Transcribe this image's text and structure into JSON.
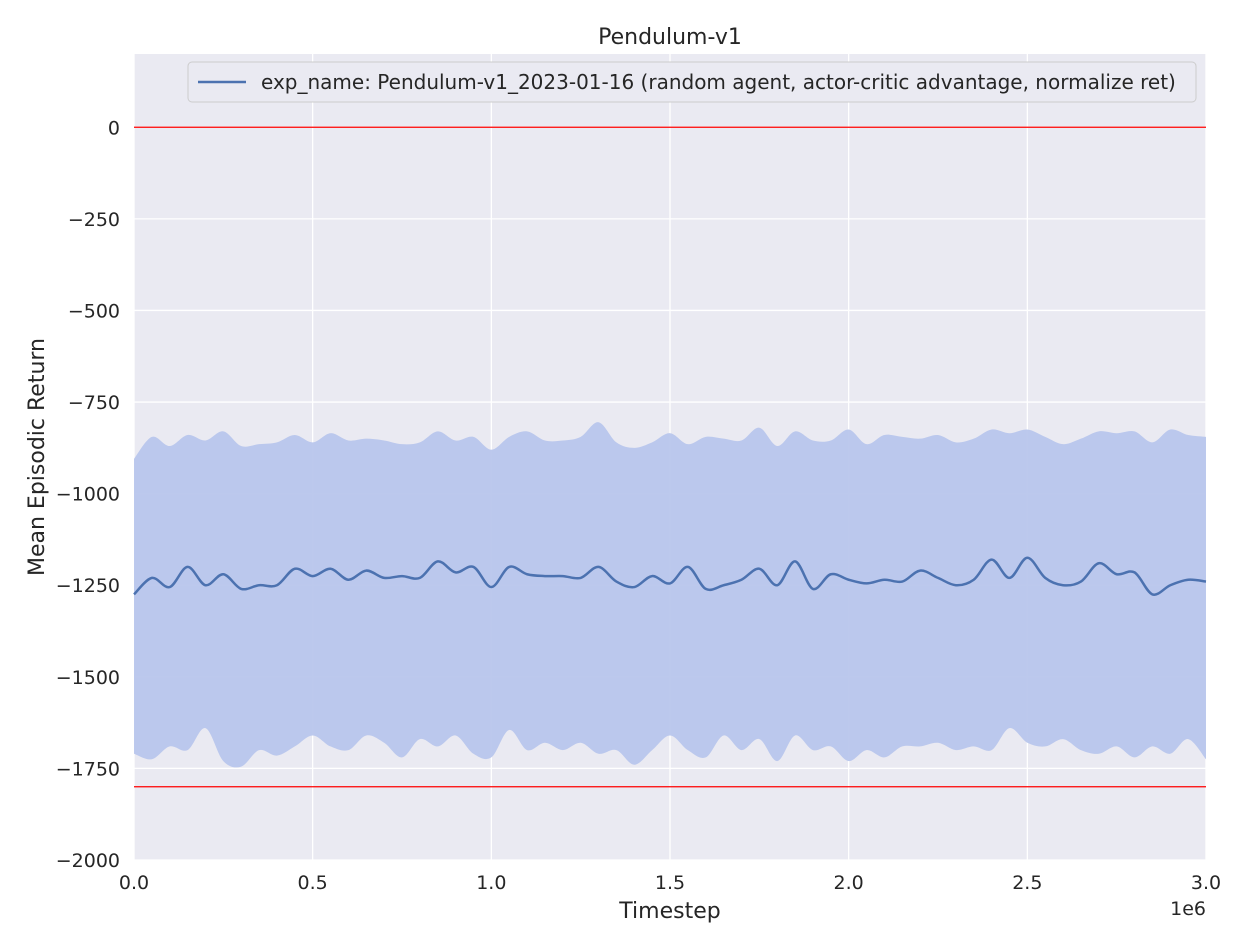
{
  "chart_data": {
    "type": "line",
    "title": "Pendulum-v1",
    "xlabel": "Timestep",
    "ylabel": "Mean Episodic Return",
    "x_scale_label": "1e6",
    "xlim": [
      0,
      3000000
    ],
    "ylim": [
      -2000,
      200
    ],
    "x_ticks": [
      0,
      500000,
      1000000,
      1500000,
      2000000,
      2500000,
      3000000
    ],
    "x_tick_labels": [
      "0.0",
      "0.5",
      "1.0",
      "1.5",
      "2.0",
      "2.5",
      "3.0"
    ],
    "y_ticks": [
      0,
      -250,
      -500,
      -750,
      -1000,
      -1250,
      -1500,
      -1750,
      -2000
    ],
    "y_tick_labels": [
      "0",
      "−250",
      "−500",
      "−750",
      "−1000",
      "−1250",
      "−1500",
      "−1750",
      "−2000"
    ],
    "grid": true,
    "legend_position": "top-right",
    "background": "#eaeaf2",
    "reference_lines": [
      {
        "y": 0,
        "color": "#ff0000"
      },
      {
        "y": -1800,
        "color": "#ff0000"
      }
    ],
    "series": [
      {
        "name": "exp_name: Pendulum-v1_2023-01-16 (random agent, actor-critic advantage, normalize ret)",
        "color": "#4c72b0",
        "band_color": "#b8c6ec",
        "x": [
          0,
          50000,
          100000,
          150000,
          200000,
          250000,
          300000,
          350000,
          400000,
          450000,
          500000,
          550000,
          600000,
          650000,
          700000,
          750000,
          800000,
          850000,
          900000,
          950000,
          1000000,
          1050000,
          1100000,
          1150000,
          1200000,
          1250000,
          1300000,
          1350000,
          1400000,
          1450000,
          1500000,
          1550000,
          1600000,
          1650000,
          1700000,
          1750000,
          1800000,
          1850000,
          1900000,
          1950000,
          2000000,
          2050000,
          2100000,
          2150000,
          2200000,
          2250000,
          2300000,
          2350000,
          2400000,
          2450000,
          2500000,
          2550000,
          2600000,
          2650000,
          2700000,
          2750000,
          2800000,
          2850000,
          2900000,
          2950000,
          3000000
        ],
        "mean": [
          -1275,
          -1230,
          -1255,
          -1200,
          -1250,
          -1220,
          -1260,
          -1250,
          -1250,
          -1205,
          -1225,
          -1205,
          -1235,
          -1210,
          -1230,
          -1225,
          -1230,
          -1185,
          -1215,
          -1200,
          -1255,
          -1200,
          -1220,
          -1225,
          -1225,
          -1230,
          -1200,
          -1240,
          -1255,
          -1225,
          -1245,
          -1200,
          -1260,
          -1250,
          -1235,
          -1205,
          -1250,
          -1185,
          -1260,
          -1220,
          -1235,
          -1245,
          -1235,
          -1240,
          -1210,
          -1230,
          -1250,
          -1235,
          -1180,
          -1230,
          -1175,
          -1230,
          -1250,
          -1240,
          -1190,
          -1220,
          -1215,
          -1275,
          -1250,
          -1235,
          -1240
        ],
        "upper": [
          -905,
          -845,
          -870,
          -840,
          -855,
          -830,
          -870,
          -865,
          -860,
          -840,
          -860,
          -835,
          -855,
          -850,
          -855,
          -865,
          -860,
          -830,
          -855,
          -845,
          -880,
          -845,
          -830,
          -855,
          -855,
          -845,
          -805,
          -860,
          -875,
          -860,
          -835,
          -865,
          -845,
          -850,
          -855,
          -820,
          -870,
          -830,
          -855,
          -855,
          -825,
          -865,
          -840,
          -845,
          -850,
          -840,
          -860,
          -850,
          -825,
          -835,
          -825,
          -845,
          -865,
          -850,
          -830,
          -835,
          -830,
          -860,
          -825,
          -840,
          -845
        ],
        "lower": [
          -1710,
          -1725,
          -1690,
          -1700,
          -1640,
          -1730,
          -1745,
          -1700,
          -1715,
          -1690,
          -1660,
          -1690,
          -1700,
          -1660,
          -1680,
          -1720,
          -1670,
          -1690,
          -1660,
          -1710,
          -1720,
          -1645,
          -1700,
          -1680,
          -1700,
          -1680,
          -1710,
          -1700,
          -1740,
          -1700,
          -1660,
          -1700,
          -1720,
          -1660,
          -1700,
          -1670,
          -1730,
          -1660,
          -1700,
          -1690,
          -1730,
          -1700,
          -1720,
          -1690,
          -1690,
          -1680,
          -1700,
          -1690,
          -1700,
          -1640,
          -1680,
          -1690,
          -1670,
          -1700,
          -1710,
          -1690,
          -1720,
          -1690,
          -1710,
          -1670,
          -1725
        ]
      }
    ]
  }
}
